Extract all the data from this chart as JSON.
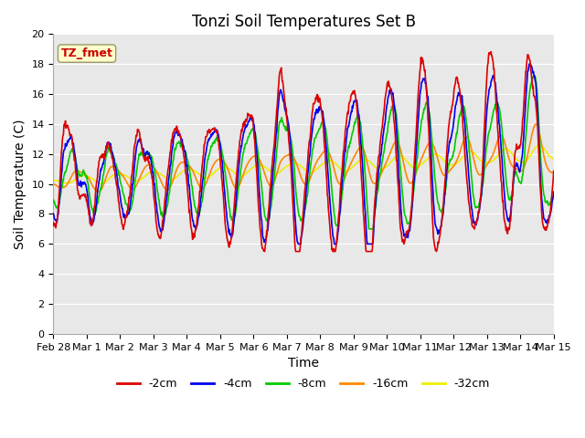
{
  "title": "Tonzi Soil Temperatures Set B",
  "xlabel": "Time",
  "ylabel": "Soil Temperature (C)",
  "ylim": [
    0,
    20
  ],
  "yticks": [
    0,
    2,
    4,
    6,
    8,
    10,
    12,
    14,
    16,
    18,
    20
  ],
  "bg_color": "#e8e8e8",
  "fig_bg_color": "#ffffff",
  "legend_label": "TZ_fmet",
  "legend_box_facecolor": "#ffffcc",
  "legend_box_edgecolor": "#999966",
  "legend_text_color": "#cc0000",
  "series_colors": {
    "-2cm": "#dd0000",
    "-4cm": "#0000ee",
    "-8cm": "#00cc00",
    "-16cm": "#ff8800",
    "-32cm": "#eeee00"
  },
  "linewidth": 1.2,
  "grid_color": "#ffffff",
  "spine_color": "#aaaaaa",
  "tick_fontsize": 8,
  "axis_label_fontsize": 10,
  "title_fontsize": 12,
  "time_labels": [
    "Feb 28",
    "Mar 1",
    "Mar 2",
    "Mar 3",
    "Mar 4",
    "Mar 5",
    "Mar 6",
    "Mar 7",
    "Mar 8",
    "Mar 9",
    "Mar 10",
    "Mar 11",
    "Mar 12",
    "Mar 13",
    "Mar 14",
    "Mar 15"
  ],
  "time_positions": [
    0,
    1,
    2,
    3,
    4,
    5,
    6,
    7,
    8,
    9,
    10,
    11,
    12,
    13,
    14,
    15
  ]
}
